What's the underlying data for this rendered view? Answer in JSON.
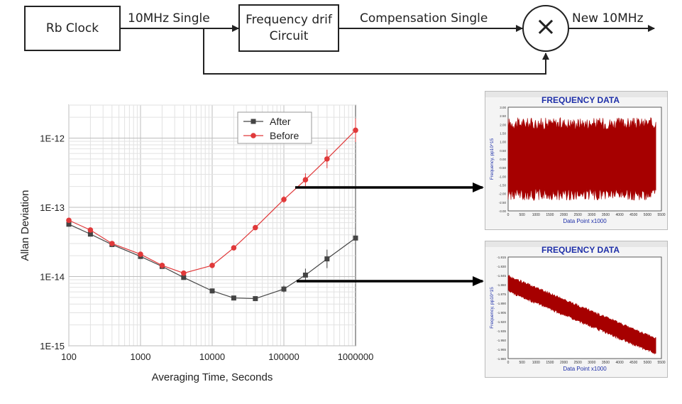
{
  "diagram": {
    "rb_clock": "Rb Clock",
    "freq_drift_line1": "Frequency drif",
    "freq_drift_line2": "Circuit",
    "edge_10mhz": "10MHz Single",
    "edge_comp": "Compensation Single",
    "edge_new": "New 10MHz",
    "mixer_symbol": "×"
  },
  "chart_data": [
    {
      "type": "line",
      "xscale": "log",
      "yscale": "log",
      "xlim": [
        100,
        1000000
      ],
      "ylim": [
        1e-15,
        3e-12
      ],
      "xlabel": "Averaging Time, Seconds",
      "ylabel": "Allan Deviation",
      "xticks": [
        "100",
        "1000",
        "10000",
        "100000",
        "1000000"
      ],
      "yticks": [
        "1E-15",
        "1E-14",
        "1E-13",
        "1E-12"
      ],
      "grid": true,
      "legend": "top-right",
      "series": [
        {
          "name": "After",
          "color": "#444444",
          "marker": "square",
          "x": [
            100,
            200,
            400,
            1000,
            2000,
            4000,
            10000,
            20000,
            40000,
            100000,
            200000,
            400000,
            1000000
          ],
          "y": [
            5.7e-14,
            4.1e-14,
            2.9e-14,
            1.95e-14,
            1.4e-14,
            9.7e-15,
            6.2e-15,
            4.9e-15,
            4.8e-15,
            6.6e-15,
            1.05e-14,
            1.8e-14,
            3.6e-14
          ]
        },
        {
          "name": "Before",
          "color": "#e0393a",
          "marker": "circle",
          "x": [
            100,
            200,
            400,
            1000,
            2000,
            4000,
            10000,
            20000,
            40000,
            100000,
            200000,
            400000,
            1000000
          ],
          "y": [
            6.5e-14,
            4.7e-14,
            3e-14,
            2.1e-14,
            1.45e-14,
            1.12e-14,
            1.45e-14,
            2.6e-14,
            5.1e-14,
            1.3e-13,
            2.5e-13,
            5e-13,
            1.3e-12
          ]
        }
      ]
    },
    {
      "type": "line",
      "title": "FREQUENCY DATA",
      "xlabel": "Data Point x1000",
      "ylabel": "Frequency, pp10^15",
      "xticks": [
        "0",
        "500",
        "1000",
        "1500",
        "2000",
        "2500",
        "3000",
        "3500",
        "4000",
        "4500",
        "5000",
        "5500"
      ],
      "yticks": [
        "3.00",
        "2.50",
        "2.00",
        "1.50",
        "1.00",
        "0.50",
        "0.00",
        "-0.50",
        "-1.00",
        "-1.50",
        "-2.00",
        "-2.50",
        "-3.00"
      ],
      "ylim": [
        -3,
        3
      ],
      "xlim": [
        0,
        5500
      ],
      "color": "#a60000",
      "series": [
        {
          "band_center": [
            0,
            0
          ],
          "band_halfwidth": 2.0,
          "x": [
            0,
            5300
          ]
        }
      ]
    },
    {
      "type": "line",
      "title": "FREQUENCY DATA",
      "xlabel": "Data Point x1000",
      "ylabel": "Frequency, pp10^15",
      "xticks": [
        "0",
        "500",
        "1000",
        "1500",
        "2000",
        "2500",
        "3000",
        "3500",
        "4000",
        "4500",
        "5000",
        "5500"
      ],
      "yticks": [
        "-1.815",
        "-1.830",
        "-1.845",
        "-1.860",
        "-1.875",
        "-1.890",
        "-1.905",
        "-1.920",
        "-1.935",
        "-1.950",
        "-1.965",
        "-1.980"
      ],
      "ylim": [
        -1.98,
        -1.815
      ],
      "xlim": [
        0,
        5500
      ],
      "color": "#a60000",
      "series": [
        {
          "band_center": [
            -1.858,
            -1.96
          ],
          "band_halfwidth": 0.012,
          "x": [
            0,
            5300
          ]
        }
      ]
    }
  ],
  "connectors": {
    "color": "#000000"
  }
}
